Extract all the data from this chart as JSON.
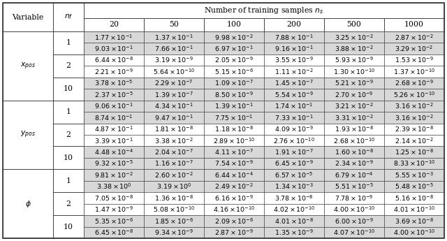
{
  "ns_header": "Number of training samples $n_s$",
  "col_var": "Variable",
  "col_nf": "$n_f$",
  "ns_values": [
    "20",
    "50",
    "100",
    "200",
    "500",
    "1000"
  ],
  "var_labels": [
    "$x_{pos}$",
    "$y_{pos}$",
    "$\\phi$"
  ],
  "nf_values": [
    "1",
    "2",
    "10"
  ],
  "rows": {
    "x_pos": {
      "1": [
        [
          "$1.77 \\times 10^{-1}$",
          "$1.37 \\times 10^{-1}$",
          "$9.98 \\times 10^{-2}$",
          "$7.88 \\times 10^{-1}$",
          "$3.25 \\times 10^{-2}$",
          "$2.87 \\times 10^{-2}$"
        ],
        [
          "$9.03 \\times 10^{-1}$",
          "$7.66 \\times 10^{-1}$",
          "$6.97 \\times 10^{-1}$",
          "$9.16 \\times 10^{-1}$",
          "$3.88 \\times 10^{-2}$",
          "$3.29 \\times 10^{-2}$"
        ]
      ],
      "2": [
        [
          "$6.44 \\times 10^{-8}$",
          "$3.19 \\times 10^{-9}$",
          "$2.05 \\times 10^{-9}$",
          "$3.55 \\times 10^{-9}$",
          "$5.93 \\times 10^{-9}$",
          "$1.53 \\times 10^{-9}$"
        ],
        [
          "$2.21 \\times 10^{-9}$",
          "$5.64 \\times 10^{-10}$",
          "$5.15 \\times 10^{-6}$",
          "$1.11 \\times 10^{-2}$",
          "$1.30 \\times 10^{-10}$",
          "$1.37 \\times 10^{-10}$"
        ]
      ],
      "10": [
        [
          "$3.78 \\times 10^{-5}$",
          "$2.29 \\times 10^{-7}$",
          "$1.09 \\times 10^{-7}$",
          "$1.45 \\times 10^{-7}$",
          "$5.21 \\times 10^{-9}$",
          "$2.68 \\times 10^{-9}$"
        ],
        [
          "$2.37 \\times 10^{-5}$",
          "$1.39 \\times 10^{-7}$",
          "$8.50 \\times 10^{-9}$",
          "$5.54 \\times 10^{-9}$",
          "$2.70 \\times 10^{-9}$",
          "$5.26 \\times 10^{-10}$"
        ]
      ]
    },
    "y_pos": {
      "1": [
        [
          "$9.06 \\times 10^{-1}$",
          "$4.34 \\times 10^{-1}$",
          "$1.39 \\times 10^{-1}$",
          "$1.74 \\times 10^{-1}$",
          "$3.21 \\times 10^{-2}$",
          "$3.16 \\times 10^{-2}$"
        ],
        [
          "$8.74 \\times 10^{-1}$",
          "$9.47 \\times 10^{-1}$",
          "$7.75 \\times 10^{-1}$",
          "$7.33 \\times 10^{-1}$",
          "$3.31 \\times 10^{-2}$",
          "$3.16 \\times 10^{-2}$"
        ]
      ],
      "2": [
        [
          "$4.87 \\times 10^{-1}$",
          "$1.81 \\times 10^{-8}$",
          "$1.18 \\times 10^{-8}$",
          "$4.09 \\times 10^{-9}$",
          "$1.93 \\times 10^{-8}$",
          "$2.39 \\times 10^{-8}$"
        ],
        [
          "$3.39 \\times 10^{-1}$",
          "$3.38 \\times 10^{-2}$",
          "$2.89 \\times 10^{-10}$",
          "$2.76 \\times 10^{-10}$",
          "$2.68 \\times 10^{-10}$",
          "$2.14 \\times 10^{-2}$"
        ]
      ],
      "10": [
        [
          "$4.48 \\times 10^{-4}$",
          "$2.04 \\times 10^{-7}$",
          "$4.11 \\times 10^{-7}$",
          "$1.91 \\times 10^{-7}$",
          "$1.60 \\times 10^{-8}$",
          "$1.25 \\times 10^{-8}$"
        ],
        [
          "$9.32 \\times 10^{-5}$",
          "$1.16 \\times 10^{-7}$",
          "$7.54 \\times 10^{-9}$",
          "$6.45 \\times 10^{-9}$",
          "$2.34 \\times 10^{-9}$",
          "$8.33 \\times 10^{-10}$"
        ]
      ]
    },
    "phi": {
      "1": [
        [
          "$9.81 \\times 10^{-2}$",
          "$2.60 \\times 10^{-2}$",
          "$6.44 \\times 10^{-4}$",
          "$6.57 \\times 10^{-5}$",
          "$6.79 \\times 10^{-4}$",
          "$5.55 \\times 10^{-3}$"
        ],
        [
          "$3.38 \\times 10^{0}$",
          "$3.19 \\times 10^{0}$",
          "$2.49 \\times 10^{-2}$",
          "$1.34 \\times 10^{-3}$",
          "$5.51 \\times 10^{-5}$",
          "$5.48 \\times 10^{-5}$"
        ]
      ],
      "2": [
        [
          "$7.05 \\times 10^{-8}$",
          "$1.36 \\times 10^{-8}$",
          "$6.16 \\times 10^{-9}$",
          "$3.78 \\times 10^{-8}$",
          "$7.78 \\times 10^{-9}$",
          "$5.16 \\times 10^{-8}$"
        ],
        [
          "$1.47 \\times 10^{-9}$",
          "$5.08 \\times 10^{-10}$",
          "$4.16 \\times 10^{-10}$",
          "$4.02 \\times 10^{-10}$",
          "$4.00 \\times 10^{-10}$",
          "$4.01 \\times 10^{-10}$"
        ]
      ],
      "10": [
        [
          "$5.35 \\times 10^{-6}$",
          "$1.85 \\times 10^{-6}$",
          "$2.09 \\times 10^{-6}$",
          "$4.01 \\times 10^{-8}$",
          "$6.00 \\times 10^{-9}$",
          "$3.69 \\times 10^{-8}$"
        ],
        [
          "$6.45 \\times 10^{-8}$",
          "$9.34 \\times 10^{-9}$",
          "$2.87 \\times 10^{-9}$",
          "$1.35 \\times 10^{-9}$",
          "$4.07 \\times 10^{-10}$",
          "$4.00 \\times 10^{-10}$"
        ]
      ]
    }
  },
  "bg_shaded": "#d8d8d8",
  "bg_white": "#ffffff",
  "border_color": "#333333",
  "text_color": "#000000",
  "data_fontsize": 6.8,
  "header_fontsize": 7.8,
  "var_nf_fontsize": 7.8
}
